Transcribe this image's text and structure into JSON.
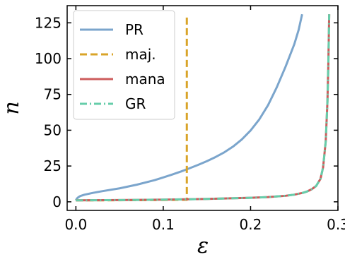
{
  "chart_data": {
    "type": "line",
    "xlabel": "ε",
    "ylabel": "n",
    "xlim": [
      -0.01,
      0.3
    ],
    "ylim": [
      -6,
      137
    ],
    "x_ticks": [
      0.0,
      0.1,
      0.2,
      0.3
    ],
    "x_tick_labels": [
      "0.0",
      "0.1",
      "0.2",
      "0.3"
    ],
    "y_ticks": [
      0,
      25,
      50,
      75,
      100,
      125
    ],
    "y_tick_labels": [
      "0",
      "25",
      "50",
      "75",
      "100",
      "125"
    ],
    "ticks_direction": "in",
    "grid": false,
    "legend": {
      "position": "top-left",
      "entries": [
        "PR",
        "maj.",
        "mana",
        "GR"
      ]
    },
    "series": [
      {
        "name": "PR",
        "color": "#7ba5cc",
        "style": "solid",
        "x": [
          0.0,
          0.001,
          0.003,
          0.005,
          0.01,
          0.02,
          0.03,
          0.05,
          0.07,
          0.09,
          0.1,
          0.11,
          0.12,
          0.13,
          0.14,
          0.15,
          0.16,
          0.17,
          0.18,
          0.19,
          0.2,
          0.21,
          0.22,
          0.23,
          0.24,
          0.25,
          0.255,
          0.259
        ],
        "values": [
          1.0,
          2.2,
          3.3,
          4.0,
          5.0,
          6.3,
          7.4,
          9.4,
          12.0,
          15.1,
          17.0,
          19.0,
          21.1,
          23.4,
          25.8,
          28.4,
          31.3,
          34.6,
          38.6,
          43.6,
          49.8,
          57.6,
          67.5,
          80.0,
          94.3,
          110.0,
          120.0,
          131.0
        ]
      },
      {
        "name": "maj.",
        "color": "#d9a429",
        "style": "dashed",
        "x": [
          0.0,
          0.02,
          0.05,
          0.08,
          0.1,
          0.12,
          0.127,
          0.127
        ],
        "values": [
          1.0,
          1.0,
          1.1,
          1.2,
          1.3,
          1.4,
          1.4,
          131.0
        ]
      },
      {
        "name": "mana",
        "color": "#cd5c5c",
        "style": "solid",
        "x": [
          0.0,
          0.05,
          0.1,
          0.15,
          0.2,
          0.22,
          0.24,
          0.25,
          0.26,
          0.265,
          0.27,
          0.275,
          0.28,
          0.283,
          0.286,
          0.288,
          0.289,
          0.29
        ],
        "values": [
          1.0,
          1.2,
          1.5,
          2.0,
          2.8,
          3.3,
          4.2,
          5.0,
          6.3,
          7.3,
          8.8,
          11.0,
          16.0,
          24.0,
          42.0,
          70.0,
          95.0,
          131.0
        ]
      },
      {
        "name": "GR",
        "color": "#66cdaa",
        "style": "dashdot",
        "x": [
          0.0,
          0.05,
          0.1,
          0.15,
          0.2,
          0.22,
          0.24,
          0.25,
          0.26,
          0.265,
          0.27,
          0.275,
          0.28,
          0.283,
          0.286,
          0.288,
          0.289,
          0.29
        ],
        "values": [
          1.0,
          1.2,
          1.5,
          2.0,
          2.8,
          3.3,
          4.2,
          5.0,
          6.3,
          7.3,
          8.8,
          11.0,
          16.0,
          24.0,
          42.0,
          70.0,
          95.0,
          131.0
        ]
      }
    ]
  }
}
